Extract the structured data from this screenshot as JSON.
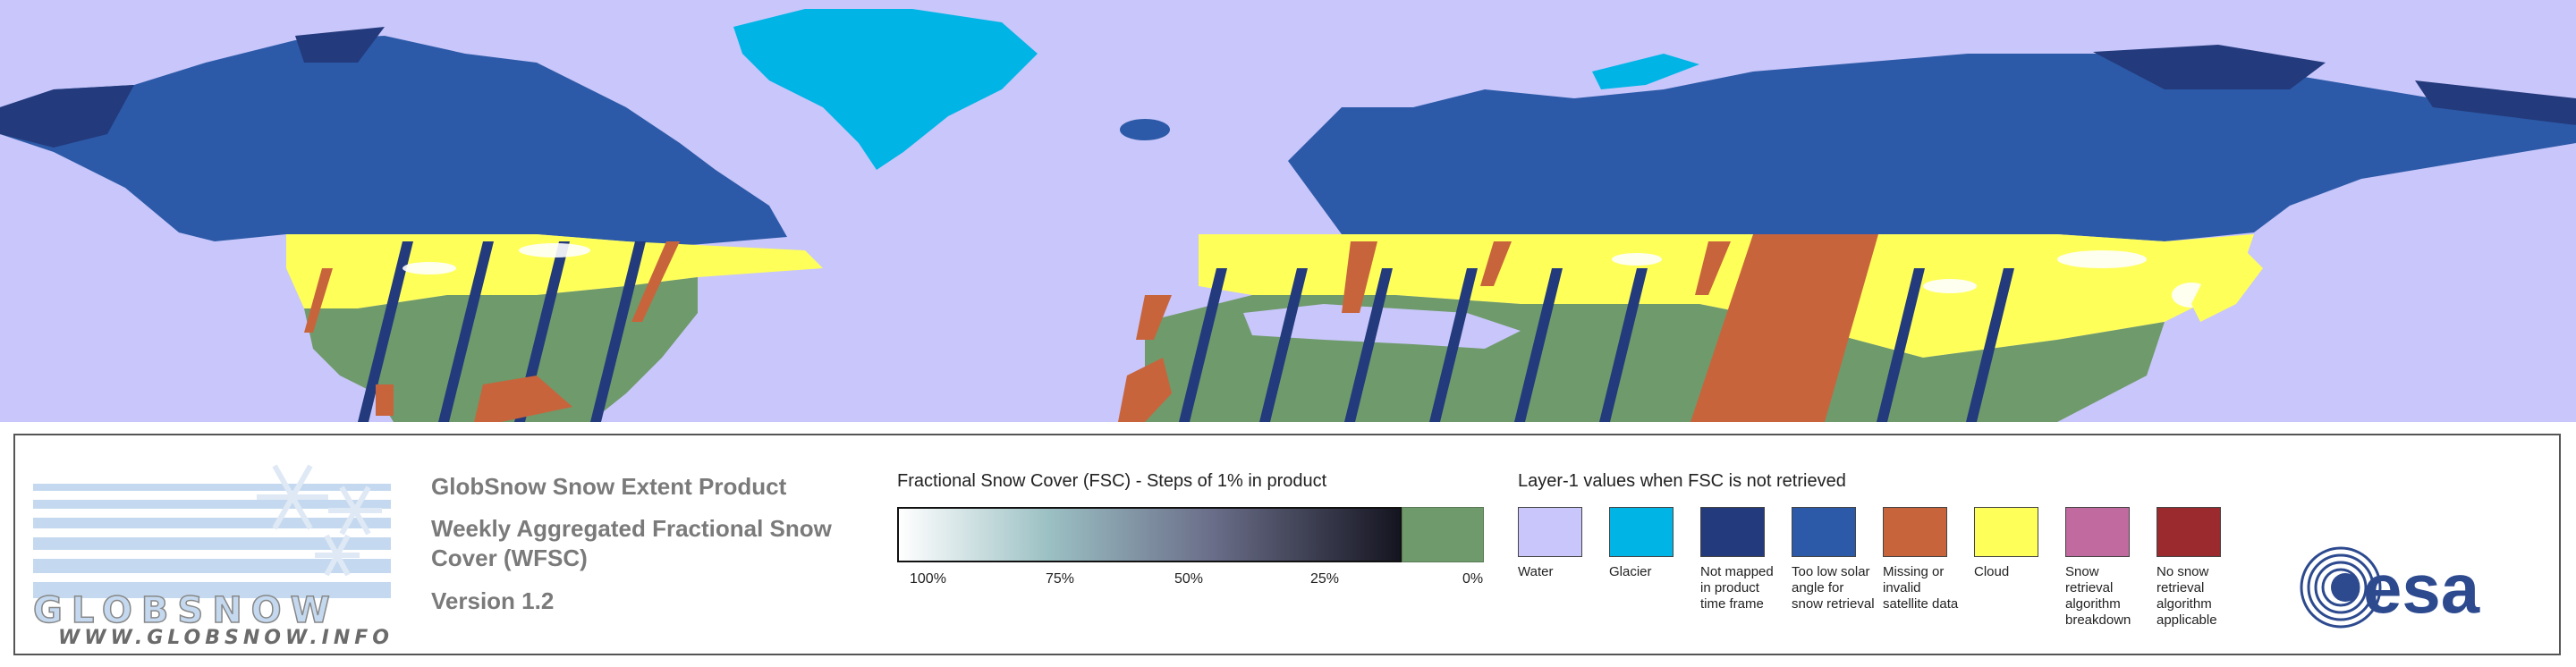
{
  "map": {
    "colors": {
      "water": "#c8c6fa",
      "glacier": "#00b4e6",
      "not_mapped": "#233a7c",
      "low_solar": "#2c5aa8",
      "missing": "#c8643c",
      "cloud": "#ffff5a",
      "no_snow": "#6f9a6b",
      "snow": "#ffffff"
    }
  },
  "logo": {
    "name": "GLOBSNOW",
    "url": "WWW.GLOBSNOW.INFO",
    "icon": "snowflake-icon"
  },
  "product": {
    "title": "GlobSnow Snow Extent Product",
    "subtitle": "Weekly Aggregated Fractional Snow Cover (WFSC)",
    "version": "Version 1.2"
  },
  "fsc": {
    "title": "Fractional Snow Cover (FSC) - Steps of 1% in product",
    "ticks": [
      "100%",
      "75%",
      "50%",
      "25%",
      "0%"
    ]
  },
  "layer1": {
    "title": "Layer-1 values when FSC is not retrieved",
    "items": [
      {
        "label": "Water",
        "color": "#c8c6fa"
      },
      {
        "label": "Glacier",
        "color": "#00b4e6"
      },
      {
        "label": "Not mapped in product time frame",
        "color": "#233a7c"
      },
      {
        "label": "Too low solar angle for snow retrieval",
        "color": "#2c5aa8"
      },
      {
        "label": "Missing or invalid satellite data",
        "color": "#c8643c"
      },
      {
        "label": "Cloud",
        "color": "#ffff5a"
      },
      {
        "label": "Snow retrieval algorithm breakdown",
        "color": "#c06aa0"
      },
      {
        "label": "No snow retrieval algorithm applicable",
        "color": "#9a2a2e"
      }
    ]
  },
  "esa": {
    "name": "esa",
    "icon": "esa-swirl-icon"
  }
}
